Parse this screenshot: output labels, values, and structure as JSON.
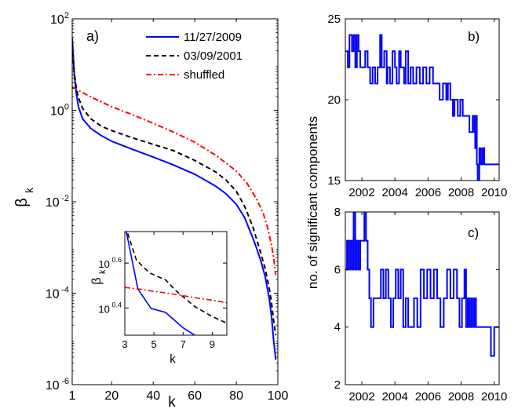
{
  "chart_data": [
    {
      "type": "line",
      "panel_label": "a)",
      "xlabel": "k",
      "ylabel_main": "β",
      "ylabel_sub": "k",
      "yscale": "log",
      "xlim": [
        1,
        100
      ],
      "ylim": [
        1e-06,
        100
      ],
      "x_ticks": [
        1,
        20,
        40,
        60,
        80,
        100
      ],
      "y_ticks": [
        {
          "value": 1e-06,
          "base": "10",
          "exp": "-6"
        },
        {
          "value": 0.0001,
          "base": "10",
          "exp": "-4"
        },
        {
          "value": 0.01,
          "base": "10",
          "exp": "-2"
        },
        {
          "value": 1,
          "base": "10",
          "exp": "0"
        },
        {
          "value": 100,
          "base": "10",
          "exp": "2"
        }
      ],
      "legend": "top-right",
      "series": [
        {
          "name": "11/27/2009",
          "color": "#0000ff",
          "dash": "solid",
          "x": [
            1,
            2,
            3,
            4,
            6,
            10,
            15,
            20,
            30,
            40,
            50,
            60,
            70,
            75,
            80,
            84,
            88,
            90,
            92,
            94,
            96,
            97,
            98,
            99
          ],
          "y": [
            38,
            6,
            2.3,
            1.2,
            0.65,
            0.4,
            0.28,
            0.21,
            0.14,
            0.095,
            0.063,
            0.04,
            0.022,
            0.015,
            0.0088,
            0.0045,
            0.0016,
            0.0009,
            0.00048,
            0.00022,
            7e-05,
            3e-05,
            9e-06,
            3.5e-06
          ]
        },
        {
          "name": "03/09/2001",
          "color": "#000000",
          "dash": "dashed",
          "x": [
            1,
            2,
            3,
            4,
            6,
            10,
            15,
            20,
            30,
            40,
            50,
            60,
            70,
            75,
            80,
            84,
            88,
            90,
            92,
            94,
            96,
            97,
            98,
            99
          ],
          "y": [
            28,
            6.5,
            3,
            1.9,
            1.1,
            0.65,
            0.45,
            0.36,
            0.25,
            0.18,
            0.13,
            0.08,
            0.045,
            0.03,
            0.017,
            0.008,
            0.0028,
            0.0014,
            0.0007,
            0.00033,
            0.00012,
            6e-05,
            2.5e-05,
            1.2e-05
          ]
        },
        {
          "name": "shuffled",
          "color": "#ff0000",
          "dash": "dashdot",
          "x": [
            1,
            2,
            3,
            5,
            10,
            20,
            30,
            40,
            50,
            60,
            70,
            80,
            85,
            90,
            93,
            95,
            97,
            98,
            99
          ],
          "y": [
            3.2,
            3.1,
            2.9,
            2.6,
            1.95,
            1.2,
            0.8,
            0.52,
            0.33,
            0.2,
            0.105,
            0.047,
            0.026,
            0.011,
            0.0055,
            0.0028,
            0.0011,
            0.0006,
            0.00025
          ]
        }
      ]
    },
    {
      "type": "line",
      "panel_label": "inset",
      "xlabel": "k",
      "ylabel_main": "β",
      "ylabel_sub": "k",
      "yscale": "log",
      "xlim": [
        3,
        10
      ],
      "ylim": [
        1.9,
        5.5
      ],
      "x_ticks": [
        3,
        5,
        7,
        9
      ],
      "y_ticks": [
        {
          "value": 2.5119,
          "base": "10",
          "exp": "0.4"
        },
        {
          "value": 3.9811,
          "base": "10",
          "exp": "0.6"
        }
      ],
      "series": [
        {
          "name": "11/27/2009",
          "color": "#0000ff",
          "dash": "solid",
          "x": [
            3.1,
            3.9,
            4.8,
            5.8,
            7.0,
            7.8
          ],
          "y": [
            5.5,
            3.05,
            2.5,
            2.4,
            2.05,
            1.9
          ]
        },
        {
          "name": "03/09/2001",
          "color": "#000000",
          "dash": "dashed",
          "x": [
            3.2,
            3.8,
            4.7,
            5.8,
            6.5,
            7.8,
            9.0,
            10
          ],
          "y": [
            5.4,
            4.1,
            3.6,
            3.35,
            3.0,
            2.55,
            2.3,
            2.15
          ]
        },
        {
          "name": "shuffled",
          "color": "#ff0000",
          "dash": "dashdot",
          "x": [
            3,
            4,
            5,
            6,
            7,
            8,
            9,
            10
          ],
          "y": [
            3.1,
            3.05,
            2.98,
            2.92,
            2.85,
            2.78,
            2.72,
            2.65
          ]
        }
      ]
    },
    {
      "type": "line",
      "panel_label": "b)",
      "ylabel": "no. of significant components",
      "xlim": [
        2001.0,
        2010.3
      ],
      "ylim": [
        15,
        25
      ],
      "x_ticks": [
        2002,
        2004,
        2006,
        2008,
        2010
      ],
      "y_ticks": [
        15,
        20,
        25
      ],
      "series": [
        {
          "name": "",
          "color": "#0000ff",
          "dash": "solid",
          "x": [
            2001.0,
            2001.15,
            2001.25,
            2001.4,
            2001.5,
            2001.6,
            2001.7,
            2001.8,
            2001.9,
            2002.05,
            2002.2,
            2002.35,
            2002.5,
            2002.65,
            2002.8,
            2002.95,
            2003.1,
            2003.2,
            2003.35,
            2003.5,
            2003.55,
            2003.7,
            2003.85,
            2004.0,
            2004.1,
            2004.25,
            2004.35,
            2004.55,
            2004.65,
            2004.8,
            2004.95,
            2005.1,
            2005.3,
            2005.5,
            2005.7,
            2005.9,
            2006.1,
            2006.3,
            2006.5,
            2006.7,
            2006.9,
            2007.1,
            2007.2,
            2007.35,
            2007.5,
            2007.6,
            2007.8,
            2007.95,
            2008.1,
            2008.2,
            2008.35,
            2008.5,
            2008.7,
            2008.8,
            2008.85,
            2008.9,
            2008.95,
            2009.0,
            2009.1,
            2009.2,
            2009.3,
            2009.4,
            2009.5,
            2009.7,
            2010.3
          ],
          "y": [
            23,
            22,
            24,
            23,
            24,
            22,
            24,
            23,
            22,
            22,
            23,
            22,
            21,
            22,
            21,
            22,
            24,
            22,
            23,
            21,
            22,
            21,
            23,
            22,
            21,
            23,
            22,
            21,
            23,
            21,
            22,
            21,
            22,
            21,
            22,
            21,
            22,
            21,
            21,
            20,
            21,
            20,
            21,
            20,
            19,
            20,
            19,
            20,
            19,
            19,
            19,
            18,
            19,
            18,
            17,
            19,
            16,
            15,
            17,
            16,
            17,
            16,
            16,
            16,
            16
          ]
        }
      ]
    },
    {
      "type": "line",
      "panel_label": "c)",
      "xlim": [
        2001.0,
        2010.3
      ],
      "ylim": [
        2,
        8
      ],
      "x_ticks": [
        2002,
        2004,
        2006,
        2008,
        2010
      ],
      "y_ticks": [
        2,
        4,
        6,
        8
      ],
      "series": [
        {
          "name": "",
          "color": "#0000ff",
          "dash": "solid",
          "x": [
            2001.0,
            2001.1,
            2001.2,
            2001.3,
            2001.4,
            2001.5,
            2001.6,
            2001.7,
            2001.8,
            2001.9,
            2002.0,
            2002.15,
            2002.25,
            2002.35,
            2002.45,
            2002.55,
            2002.7,
            2002.8,
            2003.0,
            2003.15,
            2003.3,
            2003.45,
            2003.6,
            2003.75,
            2003.9,
            2004.05,
            2004.2,
            2004.35,
            2004.5,
            2004.65,
            2004.8,
            2005.0,
            2005.15,
            2005.35,
            2005.55,
            2005.75,
            2005.95,
            2006.15,
            2006.35,
            2006.55,
            2006.75,
            2006.95,
            2007.15,
            2007.35,
            2007.55,
            2007.75,
            2007.9,
            2008.05,
            2008.2,
            2008.3,
            2008.4,
            2008.5,
            2008.6,
            2008.7,
            2008.8,
            2008.9,
            2009.0,
            2009.2,
            2009.4,
            2009.6,
            2009.8,
            2010.0,
            2010.3
          ],
          "y": [
            6,
            7,
            6,
            7,
            6,
            8,
            6,
            7,
            6,
            7,
            7,
            8,
            7,
            6,
            5,
            4,
            5,
            5,
            5,
            6,
            5,
            6,
            5,
            4,
            5,
            6,
            5,
            6,
            4,
            5,
            4,
            4,
            5,
            4,
            6,
            5,
            6,
            5,
            6,
            5,
            4,
            5,
            6,
            5,
            6,
            5,
            4,
            5,
            6,
            4,
            5,
            4,
            5,
            4,
            5,
            4,
            4,
            4,
            4,
            4,
            3,
            4,
            4
          ]
        }
      ]
    }
  ]
}
